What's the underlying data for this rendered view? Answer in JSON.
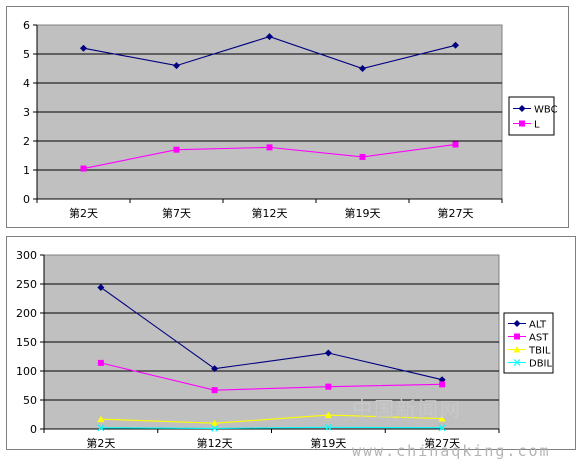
{
  "chart_data": [
    {
      "type": "line",
      "categories": [
        "第2天",
        "第7天",
        "第12天",
        "第19天",
        "第27天"
      ],
      "ylim": [
        0,
        6
      ],
      "yticks": [
        0,
        1,
        2,
        3,
        4,
        5,
        6
      ],
      "grid": true,
      "legend_position": "right",
      "plot_bg": "#c0c0c0",
      "series": [
        {
          "name": "WBC",
          "values": [
            5.2,
            4.6,
            5.6,
            4.5,
            5.3
          ],
          "color": "#000080",
          "marker": "diamond"
        },
        {
          "name": "L",
          "values": [
            1.05,
            1.7,
            1.78,
            1.45,
            1.88
          ],
          "color": "#ff00ff",
          "marker": "square"
        }
      ]
    },
    {
      "type": "line",
      "categories": [
        "第2天",
        "第12天",
        "第19天",
        "第27天"
      ],
      "ylim": [
        0,
        300
      ],
      "yticks": [
        0,
        50,
        100,
        150,
        200,
        250,
        300
      ],
      "grid": true,
      "legend_position": "right",
      "plot_bg": "#c0c0c0",
      "series": [
        {
          "name": "ALT",
          "values": [
            244,
            104,
            131,
            85
          ],
          "color": "#000080",
          "marker": "diamond"
        },
        {
          "name": "AST",
          "values": [
            114,
            67,
            73,
            77
          ],
          "color": "#ff00ff",
          "marker": "square"
        },
        {
          "name": "TBIL",
          "values": [
            17,
            10,
            24,
            18
          ],
          "color": "#ffff00",
          "marker": "triangle"
        },
        {
          "name": "DBIL",
          "values": [
            2,
            1,
            3,
            2
          ],
          "color": "#00ffff",
          "marker": "x"
        }
      ]
    }
  ],
  "watermark": {
    "text": "中国新闻网",
    "url": "www.chinaqking.com"
  }
}
